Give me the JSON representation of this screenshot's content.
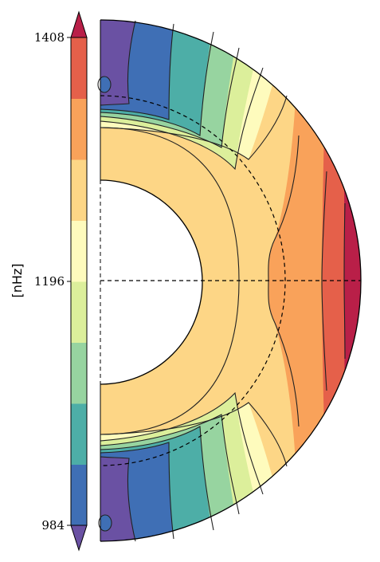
{
  "chart_data": {
    "type": "heatmap",
    "title": "",
    "colorbar": {
      "label": "[nHz]",
      "ticks": [
        "1408",
        "1196",
        "984"
      ],
      "tick_values": [
        1408,
        1196,
        984
      ],
      "range": [
        984,
        1408
      ],
      "levels": [
        984,
        1037,
        1090,
        1143,
        1196,
        1249,
        1302,
        1355,
        1408
      ],
      "extend": "both",
      "colors": [
        "#6a51a3",
        "#3f6fb5",
        "#4daea7",
        "#97d4a0",
        "#dcef9b",
        "#fefbbd",
        "#fdd686",
        "#f9a25a",
        "#e5604a",
        "#b91f48"
      ]
    },
    "meridional_cut": {
      "shape": "half-annulus",
      "inner_radius_fraction": 0.39,
      "tachocline_radius_fraction": 0.71,
      "pattern": "rotation rate: fast at equator, slow near poles; nearly uniform in inner zone",
      "dashed_reference_lines": [
        "equator",
        "tachocline"
      ]
    }
  }
}
